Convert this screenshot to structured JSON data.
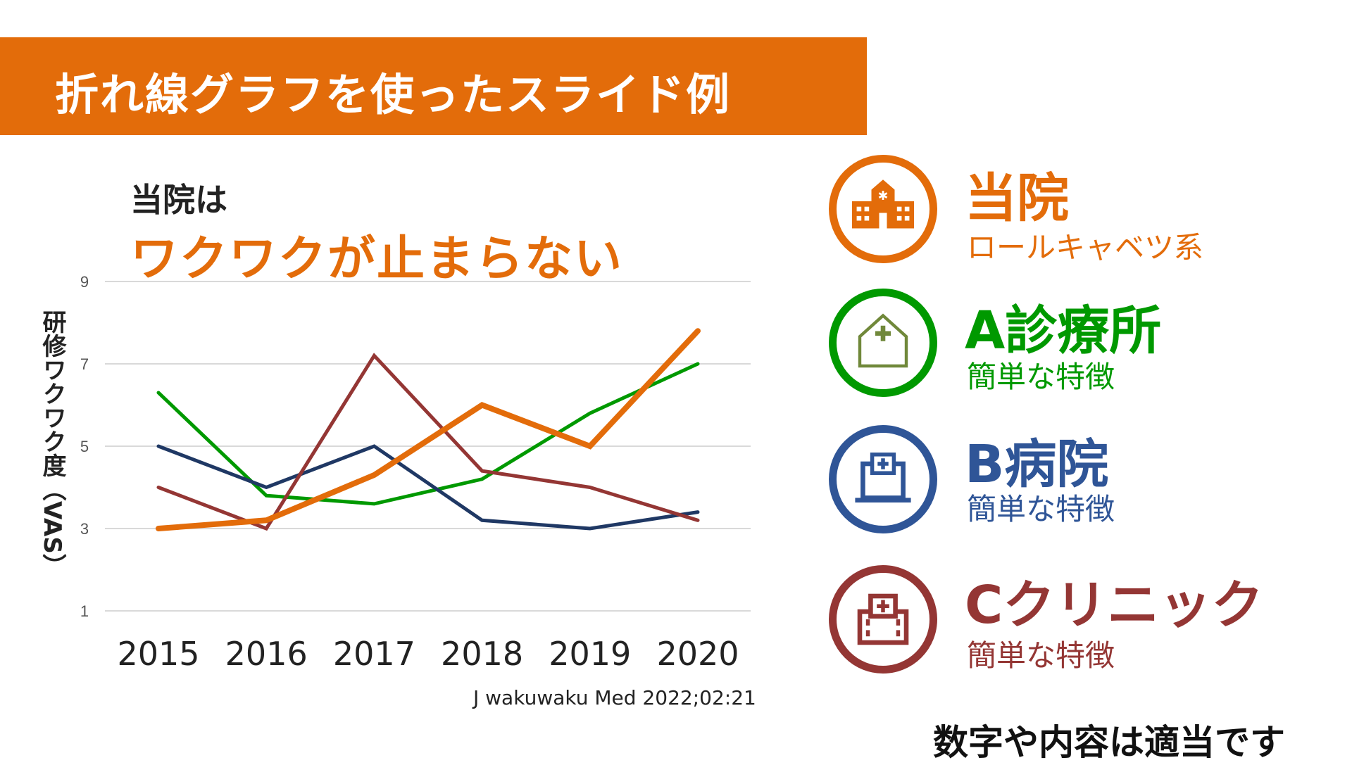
{
  "title": "折れ線グラフを使ったスライド例",
  "heading": {
    "line1": "当院は",
    "line2": "ワクワクが止まらない"
  },
  "citation": "J wakuwaku Med 2022;02:21",
  "note": "数字や内容は適当です",
  "chart_data": {
    "type": "line",
    "ylabel": "研修ワクワク度（VAS）",
    "categories": [
      "2015",
      "2016",
      "2017",
      "2018",
      "2019",
      "2020"
    ],
    "ylim": [
      1,
      9
    ],
    "yticks": [
      "1",
      "3",
      "5",
      "7",
      "9"
    ],
    "grid": true,
    "series": [
      {
        "name": "A診療所",
        "color": "#009900",
        "values": [
          6.3,
          3.8,
          3.6,
          4.2,
          5.8,
          7.0
        ]
      },
      {
        "name": "B病院",
        "color": "#1F3864",
        "values": [
          5.0,
          4.0,
          5.0,
          3.2,
          3.0,
          3.4
        ]
      },
      {
        "name": "Cクリニック",
        "color": "#943634",
        "values": [
          4.0,
          3.0,
          7.2,
          4.4,
          4.0,
          3.2
        ]
      },
      {
        "name": "当院",
        "color": "#E36C0A",
        "values": [
          3.0,
          3.2,
          4.3,
          6.0,
          5.0,
          7.8
        ]
      }
    ]
  },
  "legend": [
    {
      "name": "当院",
      "desc": "ロールキャベツ系",
      "color": "#E36C0A",
      "icon": "school-hospital-icon"
    },
    {
      "name": "A診療所",
      "desc": "簡単な特徴",
      "color": "#009900",
      "icon": "house-cross-icon"
    },
    {
      "name": "B病院",
      "desc": "簡単な特徴",
      "color": "#2F5597",
      "icon": "laptop-cross-icon"
    },
    {
      "name": "Cクリニック",
      "desc": "簡単な特徴",
      "color": "#943634",
      "icon": "building-cross-icon"
    }
  ]
}
